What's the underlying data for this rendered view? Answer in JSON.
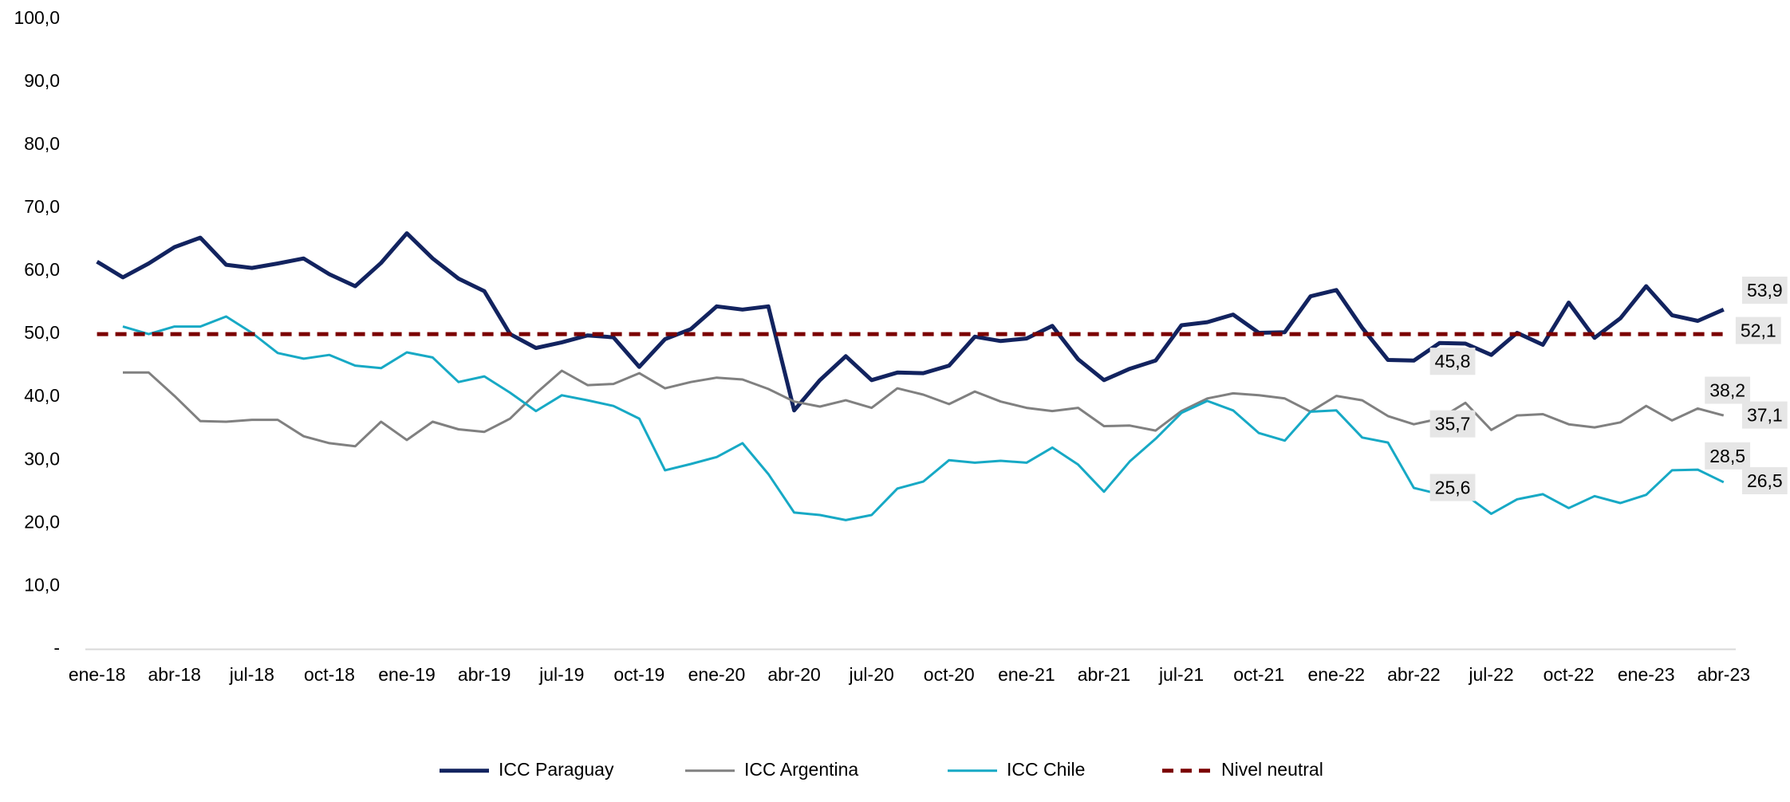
{
  "chart_data": {
    "type": "line",
    "categories": [
      "ene-18",
      null,
      null,
      "abr-18",
      null,
      null,
      "jul-18",
      null,
      null,
      "oct-18",
      null,
      null,
      "ene-19",
      null,
      null,
      "abr-19",
      null,
      null,
      "jul-19",
      null,
      null,
      "oct-19",
      null,
      null,
      "ene-20",
      null,
      null,
      "abr-20",
      null,
      null,
      "jul-20",
      null,
      null,
      "oct-20",
      null,
      null,
      "ene-21",
      null,
      null,
      "abr-21",
      null,
      null,
      "jul-21",
      null,
      null,
      "oct-21",
      null,
      null,
      "ene-22",
      null,
      null,
      "abr-22",
      null,
      null,
      "jul-22",
      null,
      null,
      "oct-22",
      null,
      null,
      "ene-23",
      null,
      null,
      "abr-23"
    ],
    "ylim": [
      0,
      100
    ],
    "yticks": [
      {
        "value": 0,
        "label": "-"
      },
      {
        "value": 10,
        "label": "10,0"
      },
      {
        "value": 20,
        "label": "20,0"
      },
      {
        "value": 30,
        "label": "30,0"
      },
      {
        "value": 40,
        "label": "40,0"
      },
      {
        "value": 50,
        "label": "50,0"
      },
      {
        "value": 60,
        "label": "60,0"
      },
      {
        "value": 70,
        "label": "70,0"
      },
      {
        "value": 80,
        "label": "80,0"
      },
      {
        "value": 90,
        "label": "90,0"
      },
      {
        "value": 100,
        "label": "100,0"
      }
    ],
    "legend": "bottom",
    "series": [
      {
        "name": "ICC Paraguay",
        "color": "#12235f",
        "width": 5,
        "values": [
          61.5,
          59,
          61.2,
          63.8,
          65.3,
          61,
          60.5,
          61.2,
          62,
          59.5,
          57.6,
          61.3,
          66,
          62,
          58.8,
          56.8,
          50,
          47.8,
          48.7,
          49.8,
          49.5,
          44.8,
          49.2,
          50.8,
          54.4,
          53.9,
          54.4,
          37.9,
          42.7,
          46.5,
          42.7,
          43.9,
          43.8,
          45,
          49.6,
          48.9,
          49.3,
          51.3,
          46,
          42.7,
          44.5,
          45.8,
          51.4,
          51.9,
          53.1,
          50.2,
          50.3,
          56,
          57,
          51,
          45.9,
          45.8,
          48.6,
          48.5,
          46.7,
          50.2,
          48.3,
          55,
          49.4,
          52.5,
          57.6,
          53,
          52.1,
          53.9
        ],
        "value_labels": [
          null,
          null,
          null,
          null,
          null,
          null,
          null,
          null,
          null,
          null,
          null,
          null,
          null,
          null,
          null,
          null,
          null,
          null,
          null,
          null,
          null,
          null,
          null,
          null,
          null,
          null,
          null,
          null,
          null,
          null,
          null,
          null,
          null,
          null,
          null,
          null,
          null,
          null,
          null,
          null,
          null,
          null,
          null,
          null,
          null,
          null,
          null,
          null,
          null,
          null,
          null,
          "45,8",
          null,
          null,
          null,
          null,
          null,
          null,
          null,
          null,
          null,
          null,
          "52,1",
          "53,9"
        ]
      },
      {
        "name": "ICC Argentina",
        "color": "#808080",
        "width": 3,
        "values": [
          null,
          43.9,
          43.9,
          40.2,
          36.2,
          36.1,
          36.4,
          36.4,
          33.8,
          32.7,
          32.2,
          36.1,
          33.2,
          36.1,
          34.9,
          34.5,
          36.6,
          40.6,
          44.2,
          41.9,
          42.1,
          43.8,
          41.4,
          42.4,
          43.1,
          42.8,
          41.3,
          39.3,
          38.5,
          39.5,
          38.3,
          41.4,
          40.4,
          38.9,
          40.9,
          39.3,
          38.3,
          37.8,
          38.3,
          35.4,
          35.5,
          34.7,
          37.8,
          39.8,
          40.6,
          40.3,
          39.8,
          37.7,
          40.2,
          39.5,
          37,
          35.7,
          36.6,
          39.1,
          34.8,
          37.1,
          37.3,
          35.7,
          35.2,
          36,
          38.6,
          36.3,
          38.2,
          37.1
        ],
        "value_labels": [
          null,
          null,
          null,
          null,
          null,
          null,
          null,
          null,
          null,
          null,
          null,
          null,
          null,
          null,
          null,
          null,
          null,
          null,
          null,
          null,
          null,
          null,
          null,
          null,
          null,
          null,
          null,
          null,
          null,
          null,
          null,
          null,
          null,
          null,
          null,
          null,
          null,
          null,
          null,
          null,
          null,
          null,
          null,
          null,
          null,
          null,
          null,
          null,
          null,
          null,
          null,
          "35,7",
          null,
          null,
          null,
          null,
          null,
          null,
          null,
          null,
          null,
          null,
          "38,2",
          "37,1"
        ]
      },
      {
        "name": "ICC Chile",
        "color": "#17a9c5",
        "width": 3,
        "values": [
          null,
          51.2,
          50,
          51.2,
          51.2,
          52.8,
          50.2,
          47,
          46.1,
          46.7,
          45,
          44.6,
          47.1,
          46.3,
          42.4,
          43.3,
          40.7,
          37.8,
          40.3,
          39.5,
          38.6,
          36.6,
          28.4,
          29.4,
          30.5,
          32.7,
          27.8,
          21.7,
          21.3,
          20.5,
          21.3,
          25.5,
          26.6,
          30,
          29.6,
          29.9,
          29.6,
          32,
          29.3,
          25,
          29.8,
          33.4,
          37.5,
          39.4,
          37.9,
          34.3,
          33.1,
          37.7,
          37.9,
          33.6,
          32.8,
          25.6,
          24.6,
          24.5,
          21.5,
          23.8,
          24.6,
          22.4,
          24.3,
          23.2,
          24.5,
          28.4,
          28.5,
          26.5
        ],
        "value_labels": [
          null,
          null,
          null,
          null,
          null,
          null,
          null,
          null,
          null,
          null,
          null,
          null,
          null,
          null,
          null,
          null,
          null,
          null,
          null,
          null,
          null,
          null,
          null,
          null,
          null,
          null,
          null,
          null,
          null,
          null,
          null,
          null,
          null,
          null,
          null,
          null,
          null,
          null,
          null,
          null,
          null,
          null,
          null,
          null,
          null,
          null,
          null,
          null,
          null,
          null,
          null,
          "25,6",
          null,
          null,
          null,
          null,
          null,
          null,
          null,
          null,
          null,
          null,
          "28,5",
          "26,5"
        ]
      },
      {
        "name": "Nivel neutral",
        "color": "#7b0000",
        "width": 5,
        "dashed": true,
        "values": [
          50,
          50,
          50,
          50,
          50,
          50,
          50,
          50,
          50,
          50,
          50,
          50,
          50,
          50,
          50,
          50,
          50,
          50,
          50,
          50,
          50,
          50,
          50,
          50,
          50,
          50,
          50,
          50,
          50,
          50,
          50,
          50,
          50,
          50,
          50,
          50,
          50,
          50,
          50,
          50,
          50,
          50,
          50,
          50,
          50,
          50,
          50,
          50,
          50,
          50,
          50,
          50,
          50,
          50,
          50,
          50,
          50,
          50,
          50,
          50,
          50,
          50,
          50,
          50
        ]
      }
    ]
  }
}
